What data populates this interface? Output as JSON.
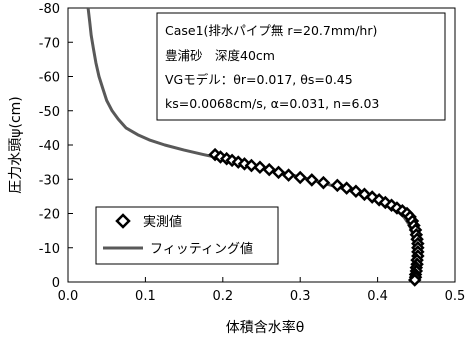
{
  "chart_data": {
    "type": "scatter",
    "xlabel": "体積含水率θ",
    "ylabel": "圧力水頭ψ(cm)",
    "xlim": [
      0.0,
      0.5
    ],
    "ylim": [
      0,
      -80
    ],
    "x_ticks": [
      "0.0",
      "0.1",
      "0.2",
      "0.3",
      "0.4",
      "0.5"
    ],
    "y_ticks": [
      "0",
      "-10",
      "-20",
      "-30",
      "-40",
      "-50",
      "-60",
      "-70",
      "-80"
    ],
    "grid": false,
    "legend_placement": "bottom-left",
    "annotation_lines": [
      "Case1(排水パイプ無 r=20.7mm/hr)",
      "豊浦砂　深度40cm",
      "VGモデル：θr=0.017, θs=0.45",
      "ks=0.0068cm/s, α=0.031, n=6.03"
    ],
    "series": [
      {
        "name": "実測値",
        "marker": "diamond",
        "color": "#000000",
        "x": [
          0.19,
          0.197,
          0.205,
          0.212,
          0.22,
          0.228,
          0.237,
          0.248,
          0.26,
          0.272,
          0.285,
          0.3,
          0.315,
          0.33,
          0.348,
          0.36,
          0.372,
          0.383,
          0.393,
          0.402,
          0.41,
          0.418,
          0.425,
          0.432,
          0.438,
          0.442,
          0.445,
          0.447,
          0.449,
          0.45,
          0.451,
          0.452,
          0.452,
          0.452,
          0.452,
          0.451,
          0.451,
          0.45,
          0.45,
          0.449,
          0.449,
          0.448
        ],
        "y": [
          -37.2,
          -36.5,
          -36.0,
          -35.5,
          -35.0,
          -34.5,
          -34.0,
          -33.5,
          -32.8,
          -32.0,
          -31.2,
          -30.5,
          -29.8,
          -29.0,
          -28.2,
          -27.4,
          -26.5,
          -25.6,
          -24.8,
          -24.0,
          -23.2,
          -22.4,
          -21.6,
          -20.8,
          -20.0,
          -19.0,
          -17.8,
          -16.5,
          -15.2,
          -13.8,
          -12.5,
          -11.2,
          -10.0,
          -8.8,
          -7.6,
          -6.4,
          -5.2,
          -4.2,
          -3.2,
          -2.2,
          -1.4,
          -0.6
        ]
      },
      {
        "name": "フィッティング値",
        "color": "#595959",
        "x": [
          0.026,
          0.028,
          0.03,
          0.033,
          0.036,
          0.04,
          0.045,
          0.05,
          0.057,
          0.065,
          0.075,
          0.09,
          0.105,
          0.125,
          0.15,
          0.175,
          0.2,
          0.24,
          0.28,
          0.32,
          0.36,
          0.39,
          0.41,
          0.425,
          0.434,
          0.44,
          0.444,
          0.447,
          0.449,
          0.45,
          0.45,
          0.45
        ],
        "y": [
          -80.0,
          -76.0,
          -72.0,
          -68.0,
          -64.0,
          -60.0,
          -56.5,
          -53.0,
          -50.0,
          -47.5,
          -45.0,
          -43.0,
          -41.5,
          -40.0,
          -38.5,
          -37.2,
          -36.0,
          -34.0,
          -31.8,
          -29.5,
          -27.0,
          -24.8,
          -22.8,
          -20.8,
          -19.0,
          -17.0,
          -15.0,
          -12.0,
          -8.0,
          -4.0,
          -1.5,
          0.0
        ]
      }
    ]
  }
}
